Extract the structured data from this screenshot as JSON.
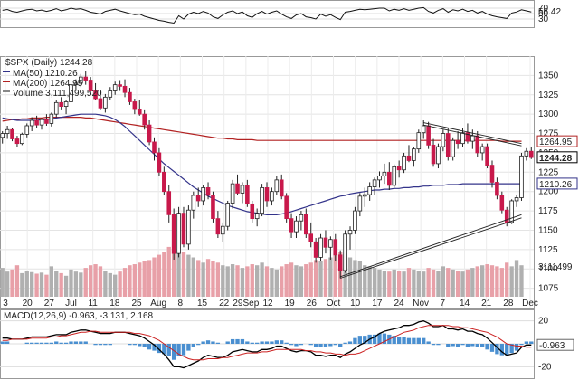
{
  "chart_data": {
    "type": "candlestick",
    "symbol_label": "$SPX (Daily) 1244.28",
    "legend": [
      {
        "label": "MA(50) 1210.26",
        "color": "#33338a"
      },
      {
        "label": "MA(200) 1264.95",
        "color": "#b22222"
      },
      {
        "label": "Volume 3,111,499,520",
        "color": "#888888"
      }
    ],
    "colors": {
      "down": "#c8194b",
      "up": "#ffffff",
      "candle_outline": "#222222",
      "ma50": "#33338a",
      "ma200": "#b22222",
      "vol_up": "#b0b0b0",
      "vol_down": "#e8a0a8",
      "trendline": "#222222",
      "macd_hist": "#4a8fd0",
      "macd_line": "#000000",
      "signal_line": "#cc2222",
      "rsi_line": "#111111",
      "rsi_fill": "#b07aa0"
    },
    "price_axis": {
      "range": [
        1050,
        1375
      ],
      "ticks": [
        1075,
        1100,
        1125,
        1150,
        1175,
        1200,
        1225,
        1250,
        1275,
        1300,
        1325,
        1350
      ]
    },
    "price_tags": [
      "1264.95",
      "1244.28",
      "1210.26"
    ],
    "volume_tag": "3111499",
    "x_labels": [
      "3",
      "20",
      "27",
      "Jul",
      "11",
      "18",
      "25",
      "Aug",
      "8",
      "15",
      "22",
      "29Sep",
      "12",
      "19",
      "26",
      "Oct",
      "10",
      "17",
      "24",
      "Nov",
      "7",
      "14",
      "21",
      "28",
      "Dec"
    ],
    "candles": [
      [
        1270,
        1278,
        1262,
        1275
      ],
      [
        1275,
        1285,
        1268,
        1280
      ],
      [
        1280,
        1282,
        1265,
        1268
      ],
      [
        1268,
        1272,
        1258,
        1262
      ],
      [
        1262,
        1276,
        1260,
        1274
      ],
      [
        1274,
        1288,
        1270,
        1285
      ],
      [
        1285,
        1296,
        1278,
        1292
      ],
      [
        1292,
        1298,
        1282,
        1286
      ],
      [
        1286,
        1295,
        1280,
        1293
      ],
      [
        1293,
        1300,
        1285,
        1288
      ],
      [
        1288,
        1302,
        1284,
        1300
      ],
      [
        1300,
        1318,
        1296,
        1315
      ],
      [
        1315,
        1322,
        1305,
        1310
      ],
      [
        1310,
        1318,
        1300,
        1316
      ],
      [
        1316,
        1340,
        1312,
        1338
      ],
      [
        1338,
        1345,
        1330,
        1340
      ],
      [
        1340,
        1352,
        1335,
        1348
      ],
      [
        1348,
        1356,
        1338,
        1344
      ],
      [
        1344,
        1348,
        1326,
        1330
      ],
      [
        1330,
        1340,
        1318,
        1320
      ],
      [
        1320,
        1330,
        1305,
        1308
      ],
      [
        1308,
        1326,
        1302,
        1322
      ],
      [
        1322,
        1335,
        1318,
        1330
      ],
      [
        1330,
        1342,
        1325,
        1338
      ],
      [
        1338,
        1344,
        1330,
        1336
      ],
      [
        1336,
        1345,
        1322,
        1328
      ],
      [
        1328,
        1334,
        1312,
        1316
      ],
      [
        1316,
        1320,
        1300,
        1306
      ],
      [
        1306,
        1318,
        1298,
        1300
      ],
      [
        1300,
        1305,
        1280,
        1286
      ],
      [
        1286,
        1292,
        1260,
        1264
      ],
      [
        1264,
        1270,
        1240,
        1250
      ],
      [
        1250,
        1256,
        1220,
        1225
      ],
      [
        1225,
        1232,
        1195,
        1200
      ],
      [
        1200,
        1208,
        1160,
        1170
      ],
      [
        1170,
        1178,
        1112,
        1120
      ],
      [
        1120,
        1180,
        1115,
        1172
      ],
      [
        1172,
        1180,
        1128,
        1132
      ],
      [
        1132,
        1182,
        1125,
        1176
      ],
      [
        1176,
        1200,
        1165,
        1195
      ],
      [
        1195,
        1205,
        1180,
        1188
      ],
      [
        1188,
        1208,
        1182,
        1205
      ],
      [
        1205,
        1212,
        1190,
        1195
      ],
      [
        1195,
        1200,
        1160,
        1165
      ],
      [
        1165,
        1175,
        1140,
        1145
      ],
      [
        1145,
        1160,
        1135,
        1155
      ],
      [
        1155,
        1188,
        1150,
        1185
      ],
      [
        1185,
        1215,
        1178,
        1210
      ],
      [
        1210,
        1222,
        1195,
        1198
      ],
      [
        1198,
        1212,
        1185,
        1208
      ],
      [
        1208,
        1215,
        1180,
        1184
      ],
      [
        1184,
        1188,
        1160,
        1165
      ],
      [
        1165,
        1178,
        1155,
        1172
      ],
      [
        1172,
        1210,
        1168,
        1205
      ],
      [
        1205,
        1212,
        1180,
        1188
      ],
      [
        1188,
        1205,
        1182,
        1200
      ],
      [
        1200,
        1220,
        1195,
        1215
      ],
      [
        1215,
        1222,
        1190,
        1194
      ],
      [
        1194,
        1198,
        1160,
        1165
      ],
      [
        1165,
        1172,
        1140,
        1148
      ],
      [
        1148,
        1168,
        1140,
        1162
      ],
      [
        1162,
        1175,
        1150,
        1170
      ],
      [
        1170,
        1178,
        1140,
        1145
      ],
      [
        1145,
        1160,
        1128,
        1135
      ],
      [
        1135,
        1140,
        1108,
        1115
      ],
      [
        1115,
        1145,
        1110,
        1140
      ],
      [
        1140,
        1150,
        1120,
        1128
      ],
      [
        1128,
        1142,
        1112,
        1138
      ],
      [
        1138,
        1145,
        1110,
        1118
      ],
      [
        1118,
        1124,
        1088,
        1098
      ],
      [
        1098,
        1150,
        1095,
        1145
      ],
      [
        1145,
        1155,
        1125,
        1150
      ],
      [
        1150,
        1180,
        1145,
        1175
      ],
      [
        1175,
        1198,
        1168,
        1194
      ],
      [
        1194,
        1205,
        1180,
        1196
      ],
      [
        1196,
        1212,
        1188,
        1206
      ],
      [
        1206,
        1218,
        1195,
        1215
      ],
      [
        1215,
        1226,
        1205,
        1220
      ],
      [
        1220,
        1236,
        1210,
        1225
      ],
      [
        1225,
        1238,
        1202,
        1208
      ],
      [
        1208,
        1235,
        1205,
        1232
      ],
      [
        1232,
        1240,
        1218,
        1228
      ],
      [
        1228,
        1250,
        1224,
        1246
      ],
      [
        1246,
        1260,
        1238,
        1240
      ],
      [
        1240,
        1258,
        1232,
        1255
      ],
      [
        1255,
        1280,
        1250,
        1276
      ],
      [
        1276,
        1292,
        1268,
        1285
      ],
      [
        1285,
        1290,
        1255,
        1260
      ],
      [
        1260,
        1268,
        1232,
        1236
      ],
      [
        1236,
        1262,
        1230,
        1258
      ],
      [
        1258,
        1280,
        1252,
        1275
      ],
      [
        1275,
        1282,
        1240,
        1245
      ],
      [
        1245,
        1270,
        1240,
        1266
      ],
      [
        1266,
        1278,
        1255,
        1262
      ],
      [
        1262,
        1282,
        1258,
        1276
      ],
      [
        1276,
        1288,
        1262,
        1265
      ],
      [
        1265,
        1280,
        1255,
        1272
      ],
      [
        1272,
        1278,
        1245,
        1250
      ],
      [
        1250,
        1262,
        1240,
        1258
      ],
      [
        1258,
        1262,
        1230,
        1234
      ],
      [
        1234,
        1240,
        1205,
        1212
      ],
      [
        1212,
        1218,
        1190,
        1195
      ],
      [
        1195,
        1200,
        1172,
        1176
      ],
      [
        1176,
        1180,
        1155,
        1160
      ],
      [
        1160,
        1190,
        1158,
        1188
      ],
      [
        1188,
        1196,
        1180,
        1192
      ],
      [
        1192,
        1250,
        1188,
        1246
      ],
      [
        1246,
        1256,
        1240,
        1252
      ],
      [
        1252,
        1258,
        1242,
        1244
      ]
    ],
    "volume": [
      55,
      48,
      52,
      60,
      45,
      50,
      47,
      44,
      46,
      42,
      58,
      50,
      45,
      40,
      52,
      48,
      46,
      55,
      60,
      62,
      58,
      50,
      45,
      42,
      48,
      55,
      60,
      62,
      65,
      68,
      70,
      75,
      80,
      85,
      95,
      100,
      90,
      85,
      80,
      75,
      70,
      65,
      72,
      68,
      65,
      60,
      58,
      62,
      60,
      55,
      58,
      62,
      60,
      65,
      58,
      55,
      52,
      58,
      62,
      65,
      60,
      58,
      62,
      65,
      70,
      68,
      72,
      75,
      80,
      85,
      82,
      75,
      70,
      68,
      60,
      58,
      55,
      52,
      50,
      48,
      52,
      50,
      48,
      55,
      52,
      50,
      48,
      55,
      52,
      50,
      58,
      55,
      52,
      50,
      48,
      52,
      55,
      58,
      60,
      62,
      60,
      58,
      55,
      65,
      58,
      70,
      60
    ],
    "ma50": [
      1295,
      1294,
      1293,
      1292,
      1292,
      1292,
      1292,
      1292,
      1293,
      1293,
      1294,
      1295,
      1296,
      1297,
      1298,
      1299,
      1300,
      1300,
      1300,
      1300,
      1299,
      1298,
      1296,
      1293,
      1289,
      1284,
      1278,
      1272,
      1266,
      1260,
      1254,
      1248,
      1242,
      1236,
      1231,
      1226,
      1221,
      1216,
      1211,
      1206,
      1202,
      1198,
      1194,
      1191,
      1188,
      1185,
      1182,
      1180,
      1178,
      1176,
      1174,
      1173,
      1172,
      1171,
      1170,
      1170,
      1170,
      1171,
      1172,
      1174,
      1176,
      1178,
      1180,
      1182,
      1184,
      1186,
      1188,
      1190,
      1192,
      1194,
      1195,
      1197,
      1198,
      1199,
      1200,
      1201,
      1202,
      1202,
      1203,
      1203,
      1204,
      1204,
      1205,
      1205,
      1206,
      1206,
      1207,
      1207,
      1208,
      1208,
      1208,
      1209,
      1209,
      1209,
      1210,
      1210,
      1210,
      1210,
      1210,
      1210,
      1210,
      1210,
      1210,
      1210,
      1210,
      1210,
      1210
    ],
    "ma200": [
      1291,
      1292,
      1293,
      1293,
      1294,
      1294,
      1295,
      1295,
      1295,
      1296,
      1296,
      1296,
      1296,
      1296,
      1296,
      1296,
      1296,
      1295,
      1295,
      1294,
      1293,
      1292,
      1291,
      1290,
      1289,
      1288,
      1287,
      1286,
      1285,
      1284,
      1283,
      1282,
      1281,
      1280,
      1279,
      1278,
      1277,
      1276,
      1275,
      1274,
      1273,
      1272,
      1271,
      1270,
      1269,
      1269,
      1268,
      1268,
      1267,
      1267,
      1267,
      1267,
      1266,
      1266,
      1266,
      1266,
      1266,
      1266,
      1266,
      1266,
      1266,
      1266,
      1266,
      1266,
      1266,
      1266,
      1266,
      1266,
      1266,
      1266,
      1266,
      1266,
      1266,
      1266,
      1266,
      1266,
      1266,
      1266,
      1266,
      1266,
      1266,
      1266,
      1266,
      1266,
      1266,
      1266,
      1266,
      1266,
      1266,
      1266,
      1266,
      1266,
      1266,
      1266,
      1266,
      1266,
      1266,
      1266,
      1266,
      1266,
      1266,
      1266,
      1265,
      1265,
      1265,
      1265,
      1265
    ],
    "trendlines": [
      {
        "from": [
          86,
          1289
        ],
        "to": [
          106,
          1262
        ]
      },
      {
        "from": [
          86,
          1286
        ],
        "to": [
          106,
          1259
        ]
      },
      {
        "from": [
          69,
          1090
        ],
        "to": [
          106,
          1170
        ]
      },
      {
        "from": [
          69,
          1088
        ],
        "to": [
          106,
          1166
        ]
      }
    ],
    "rsi": {
      "ticks": [
        "70",
        "50",
        "30"
      ],
      "tag": "56.42",
      "range": [
        0,
        100
      ],
      "values": [
        62,
        65,
        58,
        55,
        60,
        64,
        66,
        60,
        63,
        58,
        62,
        68,
        60,
        64,
        70,
        66,
        68,
        62,
        55,
        52,
        48,
        58,
        62,
        66,
        60,
        55,
        50,
        46,
        48,
        40,
        35,
        30,
        25,
        22,
        18,
        15,
        42,
        30,
        48,
        55,
        50,
        58,
        52,
        38,
        32,
        45,
        55,
        60,
        50,
        56,
        42,
        36,
        50,
        58,
        48,
        55,
        60,
        48,
        38,
        32,
        45,
        50,
        38,
        35,
        30,
        48,
        40,
        46,
        36,
        28,
        55,
        58,
        62,
        66,
        64,
        66,
        68,
        70,
        70,
        60,
        66,
        62,
        68,
        62,
        66,
        70,
        72,
        58,
        52,
        62,
        68,
        55,
        64,
        60,
        66,
        58,
        62,
        52,
        58,
        48,
        42,
        38,
        35,
        32,
        52,
        56,
        64,
        60,
        56
      ]
    },
    "macd": {
      "label": "MACD(12,26,9) -0.963, -3.131, 2.168",
      "ticks": [
        "20",
        "0",
        "-20"
      ],
      "tag": "-0.963",
      "range": [
        -30,
        30
      ],
      "macd": [
        5,
        5,
        4,
        4,
        4,
        5,
        6,
        6,
        6,
        6,
        7,
        8,
        8,
        8,
        10,
        11,
        12,
        12,
        11,
        10,
        9,
        9,
        9,
        10,
        10,
        10,
        9,
        8,
        7,
        5,
        2,
        -1,
        -5,
        -9,
        -14,
        -20,
        -20,
        -21,
        -19,
        -17,
        -15,
        -12,
        -10,
        -11,
        -12,
        -12,
        -10,
        -7,
        -6,
        -5,
        -6,
        -7,
        -7,
        -5,
        -5,
        -4,
        -2,
        -2,
        -4,
        -6,
        -7,
        -6,
        -6,
        -7,
        -10,
        -10,
        -11,
        -10,
        -10,
        -12,
        -9,
        -7,
        -4,
        -1,
        1,
        4,
        6,
        9,
        11,
        12,
        13,
        14,
        16,
        16,
        17,
        19,
        20,
        18,
        15,
        15,
        16,
        13,
        13,
        12,
        13,
        11,
        11,
        9,
        8,
        5,
        1,
        -3,
        -7,
        -10,
        -9,
        -8,
        -3,
        -1,
        -1
      ]
    },
    "macd_signal": [
      3,
      3,
      4,
      4,
      4,
      4,
      5,
      5,
      5,
      5,
      6,
      6,
      7,
      7,
      8,
      9,
      10,
      10,
      11,
      11,
      10,
      10,
      10,
      10,
      10,
      10,
      10,
      9,
      9,
      8,
      7,
      5,
      3,
      0,
      -3,
      -6,
      -9,
      -11,
      -13,
      -14,
      -14,
      -14,
      -13,
      -13,
      -13,
      -12,
      -12,
      -11,
      -10,
      -9,
      -8,
      -8,
      -8,
      -7,
      -7,
      -6,
      -5,
      -5,
      -5,
      -5,
      -5,
      -5,
      -6,
      -6,
      -7,
      -7,
      -8,
      -8,
      -9,
      -9,
      -10,
      -9,
      -9,
      -8,
      -6,
      -4,
      -2,
      0,
      2,
      4,
      6,
      8,
      10,
      11,
      12,
      14,
      15,
      16,
      16,
      16,
      16,
      16,
      15,
      15,
      14,
      14,
      13,
      12,
      11,
      10,
      8,
      6,
      3,
      0,
      -1,
      -2,
      -2,
      -3,
      -3
    ]
  }
}
